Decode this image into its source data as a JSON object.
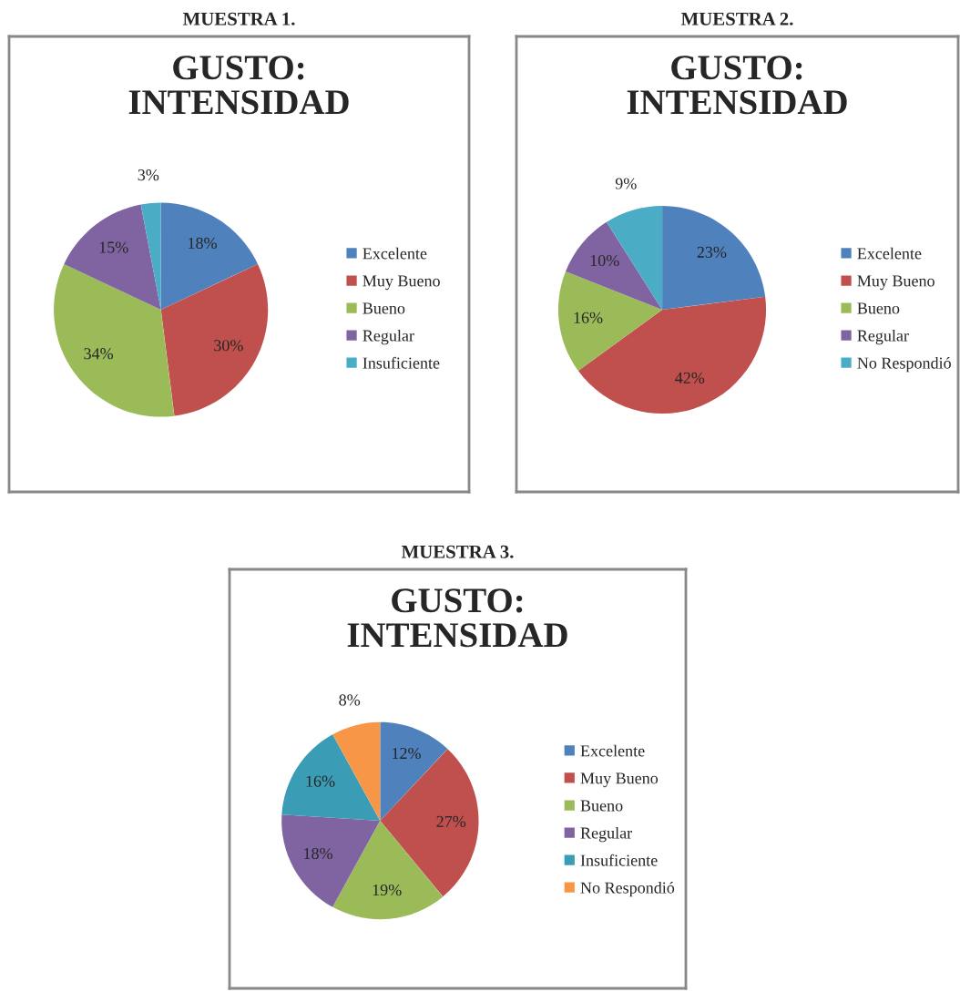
{
  "chart_data": [
    {
      "type": "pie",
      "subtitle": "MUESTRA 1.",
      "title": "GUSTO:\nINTENSIDAD",
      "categories": [
        "Excelente",
        "Muy Bueno",
        "Bueno",
        "Regular",
        "Insuficiente"
      ],
      "values": [
        18,
        30,
        34,
        15,
        3
      ],
      "colors": [
        "#4f81bd",
        "#c0504d",
        "#9bbb59",
        "#8064a2",
        "#4bacc6"
      ],
      "value_labels": [
        "18%",
        "30%",
        "34%",
        "15%",
        "3%"
      ],
      "legend": "right"
    },
    {
      "type": "pie",
      "subtitle": "MUESTRA 2.",
      "title": "GUSTO:\nINTENSIDAD",
      "categories": [
        "Excelente",
        "Muy Bueno",
        "Bueno",
        "Regular",
        "No Respondió"
      ],
      "values": [
        23,
        42,
        16,
        10,
        9
      ],
      "colors": [
        "#4f81bd",
        "#c0504d",
        "#9bbb59",
        "#8064a2",
        "#4bacc6"
      ],
      "value_labels": [
        "23%",
        "42%",
        "16%",
        "10%",
        "9%"
      ],
      "legend": "right"
    },
    {
      "type": "pie",
      "subtitle": "MUESTRA 3.",
      "title": "GUSTO:\nINTENSIDAD",
      "categories": [
        "Excelente",
        "Muy Bueno",
        "Bueno",
        "Regular",
        "Insuficiente",
        "No Respondió"
      ],
      "values": [
        12,
        27,
        19,
        18,
        16,
        8
      ],
      "colors": [
        "#4f81bd",
        "#c0504d",
        "#9bbb59",
        "#8064a2",
        "#3a9db5",
        "#f79646"
      ],
      "value_labels": [
        "12%",
        "27%",
        "19%",
        "18%",
        "16%",
        "8%"
      ],
      "legend": "right"
    }
  ]
}
